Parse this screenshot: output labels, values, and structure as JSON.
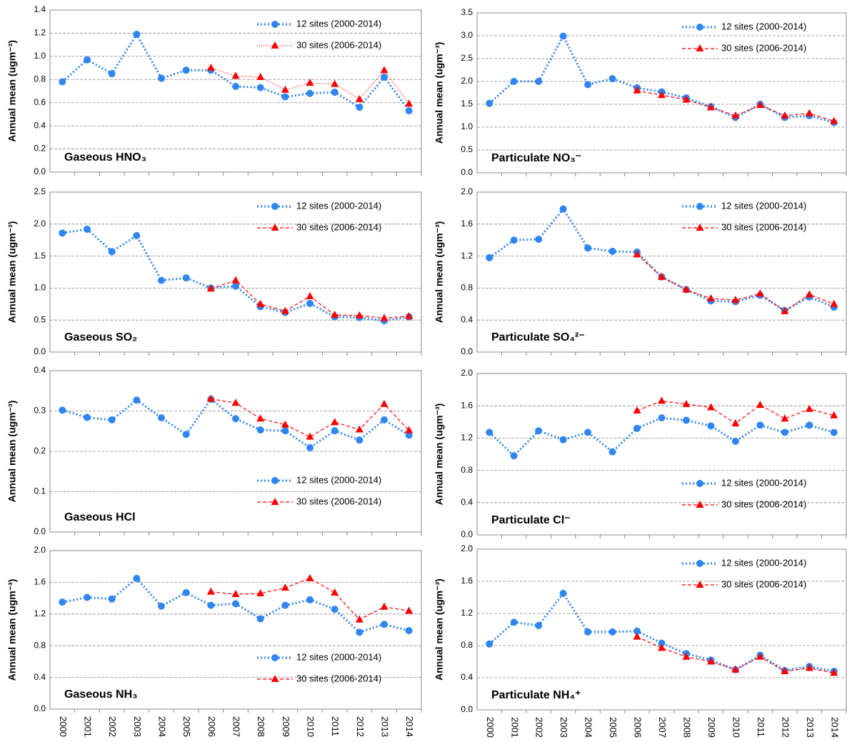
{
  "chart_data": [
    {
      "type": "line",
      "title": "Gaseous HNO₃",
      "ylabel": "Annual mean (ugm⁻³)",
      "categories": [
        null,
        null,
        null,
        null,
        null,
        null,
        null,
        null,
        null,
        null,
        null,
        null,
        null,
        null,
        null
      ],
      "series": [
        {
          "name": "12 sites (2000-2014)",
          "color": "#2f86f0",
          "marker": "circle",
          "dash": "dotted",
          "values": [
            0.78,
            0.97,
            0.85,
            1.19,
            0.81,
            0.88,
            0.88,
            0.74,
            0.73,
            0.65,
            0.68,
            0.69,
            0.56,
            0.82,
            0.53
          ]
        },
        {
          "name": "30 sites (2006-2014)",
          "color": "#ff0000",
          "marker": "triangle",
          "dash": "dotted-thin",
          "values": [
            null,
            null,
            null,
            null,
            null,
            null,
            0.9,
            0.83,
            0.82,
            0.71,
            0.77,
            0.76,
            0.63,
            0.88,
            0.59
          ]
        }
      ],
      "ylim": [
        0,
        1.4
      ],
      "yticks": [
        {
          "value": 0,
          "label": "0.0"
        },
        0.2,
        0.4,
        0.6,
        0.8,
        {
          "value": 1,
          "label": "1.0"
        },
        1.2,
        1.4
      ],
      "grid": true,
      "legend": "upper right"
    },
    {
      "type": "line",
      "title": "Particulate NO₃⁻",
      "ylabel": "Annual mean (ugm⁻³)",
      "categories": [
        null,
        null,
        null,
        null,
        null,
        null,
        null,
        null,
        null,
        null,
        null,
        null,
        null,
        null,
        null
      ],
      "series": [
        {
          "name": "12 sites (2000-2014)",
          "color": "#2f86f0",
          "marker": "circle",
          "dash": "dotted",
          "values": [
            1.52,
            2.0,
            2.0,
            2.99,
            1.93,
            2.06,
            1.86,
            1.77,
            1.64,
            1.45,
            1.21,
            1.5,
            1.21,
            1.25,
            1.1
          ]
        },
        {
          "name": "30 sites (2006-2014)",
          "color": "#ff0000",
          "marker": "triangle",
          "dash": "dashed",
          "values": [
            null,
            null,
            null,
            null,
            null,
            null,
            1.8,
            1.7,
            1.6,
            1.43,
            1.25,
            1.48,
            1.25,
            1.3,
            1.13
          ]
        }
      ],
      "ylim": [
        0,
        3.5
      ],
      "yticks": [
        {
          "value": 0,
          "label": "0.0"
        },
        0.5,
        {
          "value": 1,
          "label": "1.0"
        },
        1.5,
        {
          "value": 2,
          "label": "2.0"
        },
        2.5,
        {
          "value": 3,
          "label": "3.0"
        },
        3.5
      ],
      "grid": true,
      "legend": "upper right"
    },
    {
      "type": "line",
      "title": "Gaseous SO₂",
      "ylabel": "Annual mean (ugm⁻³)",
      "categories": [
        null,
        null,
        null,
        null,
        null,
        null,
        null,
        null,
        null,
        null,
        null,
        null,
        null,
        null,
        null
      ],
      "series": [
        {
          "name": "12 sites (2000-2014)",
          "color": "#2f86f0",
          "marker": "circle",
          "dash": "dotted",
          "values": [
            1.86,
            1.92,
            1.57,
            1.82,
            1.12,
            1.16,
            1.0,
            1.03,
            0.71,
            0.62,
            0.76,
            0.55,
            0.54,
            0.49,
            0.55
          ]
        },
        {
          "name": "30 sites (2006-2014)",
          "color": "#ff0000",
          "marker": "triangle",
          "dash": "dashed",
          "values": [
            null,
            null,
            null,
            null,
            null,
            null,
            0.99,
            1.12,
            0.75,
            0.64,
            0.87,
            0.58,
            0.57,
            0.53,
            0.56
          ]
        }
      ],
      "ylim": [
        0,
        2.5
      ],
      "yticks": [
        {
          "value": 0,
          "label": "0.0"
        },
        0.5,
        {
          "value": 1,
          "label": "1.0"
        },
        1.5,
        {
          "value": 2,
          "label": "2.0"
        },
        2.5
      ],
      "grid": true,
      "legend": "upper right"
    },
    {
      "type": "line",
      "title": "Particulate SO₄²⁻",
      "ylabel": "Annual mean (ugm⁻³)",
      "categories": [
        null,
        null,
        null,
        null,
        null,
        null,
        null,
        null,
        null,
        null,
        null,
        null,
        null,
        null,
        null
      ],
      "series": [
        {
          "name": "12 sites (2000-2014)",
          "color": "#2f86f0",
          "marker": "circle",
          "dash": "dotted",
          "values": [
            1.18,
            1.4,
            1.41,
            1.79,
            1.3,
            1.26,
            1.25,
            0.94,
            0.78,
            0.64,
            0.63,
            0.71,
            0.52,
            0.69,
            0.56
          ]
        },
        {
          "name": "30 sites (2006-2014)",
          "color": "#ff0000",
          "marker": "triangle",
          "dash": "dashed",
          "values": [
            null,
            null,
            null,
            null,
            null,
            null,
            1.22,
            0.94,
            0.78,
            0.67,
            0.65,
            0.73,
            0.51,
            0.72,
            0.6
          ]
        }
      ],
      "ylim": [
        0,
        2
      ],
      "yticks": [
        {
          "value": 0,
          "label": "0.0"
        },
        0.4,
        0.8,
        1.2,
        1.6,
        {
          "value": 2,
          "label": "2.0"
        }
      ],
      "grid": true,
      "legend": "upper right"
    },
    {
      "type": "line",
      "title": "Gaseous HCl",
      "ylabel": "Annual mean (ugm⁻³)",
      "categories": [
        null,
        null,
        null,
        null,
        null,
        null,
        null,
        null,
        null,
        null,
        null,
        null,
        null,
        null,
        null
      ],
      "series": [
        {
          "name": "12 sites (2000-2014)",
          "color": "#2f86f0",
          "marker": "circle",
          "dash": "dotted",
          "values": [
            0.302,
            0.284,
            0.278,
            0.327,
            0.283,
            0.242,
            0.329,
            0.281,
            0.253,
            0.251,
            0.209,
            0.251,
            0.228,
            0.278,
            0.24
          ]
        },
        {
          "name": "30 sites (2006-2014)",
          "color": "#ff0000",
          "marker": "triangle",
          "dash": "dashed",
          "values": [
            null,
            null,
            null,
            null,
            null,
            null,
            0.33,
            0.32,
            0.281,
            0.266,
            0.236,
            0.272,
            0.254,
            0.317,
            0.252
          ]
        }
      ],
      "ylim": [
        0,
        0.4
      ],
      "yticks": [
        {
          "value": 0,
          "label": "0.0"
        },
        0.1,
        0.2,
        0.3,
        0.4
      ],
      "grid": true,
      "legend": "lower right"
    },
    {
      "type": "line",
      "title": "Particulate Cl⁻",
      "ylabel": "Annual mean (ugm⁻³)",
      "categories": [
        null,
        null,
        null,
        null,
        null,
        null,
        null,
        null,
        null,
        null,
        null,
        null,
        null,
        null,
        null
      ],
      "series": [
        {
          "name": "12 sites (2000-2014)",
          "color": "#2f86f0",
          "marker": "circle",
          "dash": "dotted",
          "values": [
            1.27,
            0.98,
            1.29,
            1.18,
            1.27,
            1.03,
            1.32,
            1.45,
            1.42,
            1.35,
            1.16,
            1.36,
            1.27,
            1.36,
            1.27
          ]
        },
        {
          "name": "30 sites (2006-2014)",
          "color": "#ff0000",
          "marker": "triangle",
          "dash": "dashed",
          "values": [
            null,
            null,
            null,
            null,
            null,
            null,
            1.54,
            1.66,
            1.62,
            1.58,
            1.38,
            1.61,
            1.44,
            1.56,
            1.48
          ]
        }
      ],
      "ylim": [
        0,
        2
      ],
      "yticks": [
        {
          "value": 0,
          "label": "0.0"
        },
        0.4,
        0.8,
        1.2,
        1.6,
        {
          "value": 2,
          "label": "2.0"
        }
      ],
      "grid": true,
      "legend": "lower right"
    },
    {
      "type": "line",
      "title": "Gaseous NH₃",
      "ylabel": "Annual mean (ugm⁻³)",
      "categories": [
        "2000",
        "2001",
        "2002",
        "2003",
        "2004",
        "2005",
        "2006",
        "2007",
        "2008",
        "2009",
        "2010",
        "2011",
        "2012",
        "2013",
        "2014"
      ],
      "series": [
        {
          "name": "12 sites (2000-2014)",
          "color": "#2f86f0",
          "marker": "circle",
          "dash": "dotted",
          "values": [
            1.35,
            1.41,
            1.39,
            1.65,
            1.3,
            1.47,
            1.31,
            1.33,
            1.14,
            1.31,
            1.38,
            1.26,
            0.97,
            1.07,
            0.99
          ]
        },
        {
          "name": "30 sites (2006-2014)",
          "color": "#ff0000",
          "marker": "triangle",
          "dash": "dashed",
          "values": [
            null,
            null,
            null,
            null,
            null,
            null,
            1.48,
            1.45,
            1.46,
            1.53,
            1.65,
            1.47,
            1.13,
            1.29,
            1.24
          ]
        }
      ],
      "ylim": [
        0,
        2
      ],
      "yticks": [
        {
          "value": 0,
          "label": "0.0"
        },
        0.4,
        0.8,
        1.2,
        1.6,
        {
          "value": 2,
          "label": "2.0"
        }
      ],
      "grid": true,
      "legend": "lower right"
    },
    {
      "type": "line",
      "title": "Particulate NH₄⁺",
      "ylabel": "Annual mean (ugm⁻³)",
      "categories": [
        "2000",
        "2001",
        "2002",
        "2003",
        "2004",
        "2005",
        "2006",
        "2007",
        "2008",
        "2009",
        "2010",
        "2011",
        "2012",
        "2013",
        "2014"
      ],
      "series": [
        {
          "name": "12 sites (2000-2014)",
          "color": "#2f86f0",
          "marker": "circle",
          "dash": "dotted",
          "values": [
            0.82,
            1.09,
            1.05,
            1.45,
            0.97,
            0.97,
            0.98,
            0.83,
            0.7,
            0.62,
            0.5,
            0.68,
            0.49,
            0.54,
            0.48
          ]
        },
        {
          "name": "30 sites (2006-2014)",
          "color": "#ff0000",
          "marker": "triangle",
          "dash": "dashed",
          "values": [
            null,
            null,
            null,
            null,
            null,
            null,
            0.91,
            0.77,
            0.66,
            0.6,
            0.5,
            0.66,
            0.48,
            0.52,
            0.46
          ]
        }
      ],
      "ylim": [
        0,
        2
      ],
      "yticks": [
        {
          "value": 0,
          "label": "0.0"
        },
        0.4,
        0.8,
        1.2,
        1.6,
        {
          "value": 2,
          "label": "2.0"
        }
      ],
      "grid": true,
      "legend": "upper right"
    }
  ]
}
